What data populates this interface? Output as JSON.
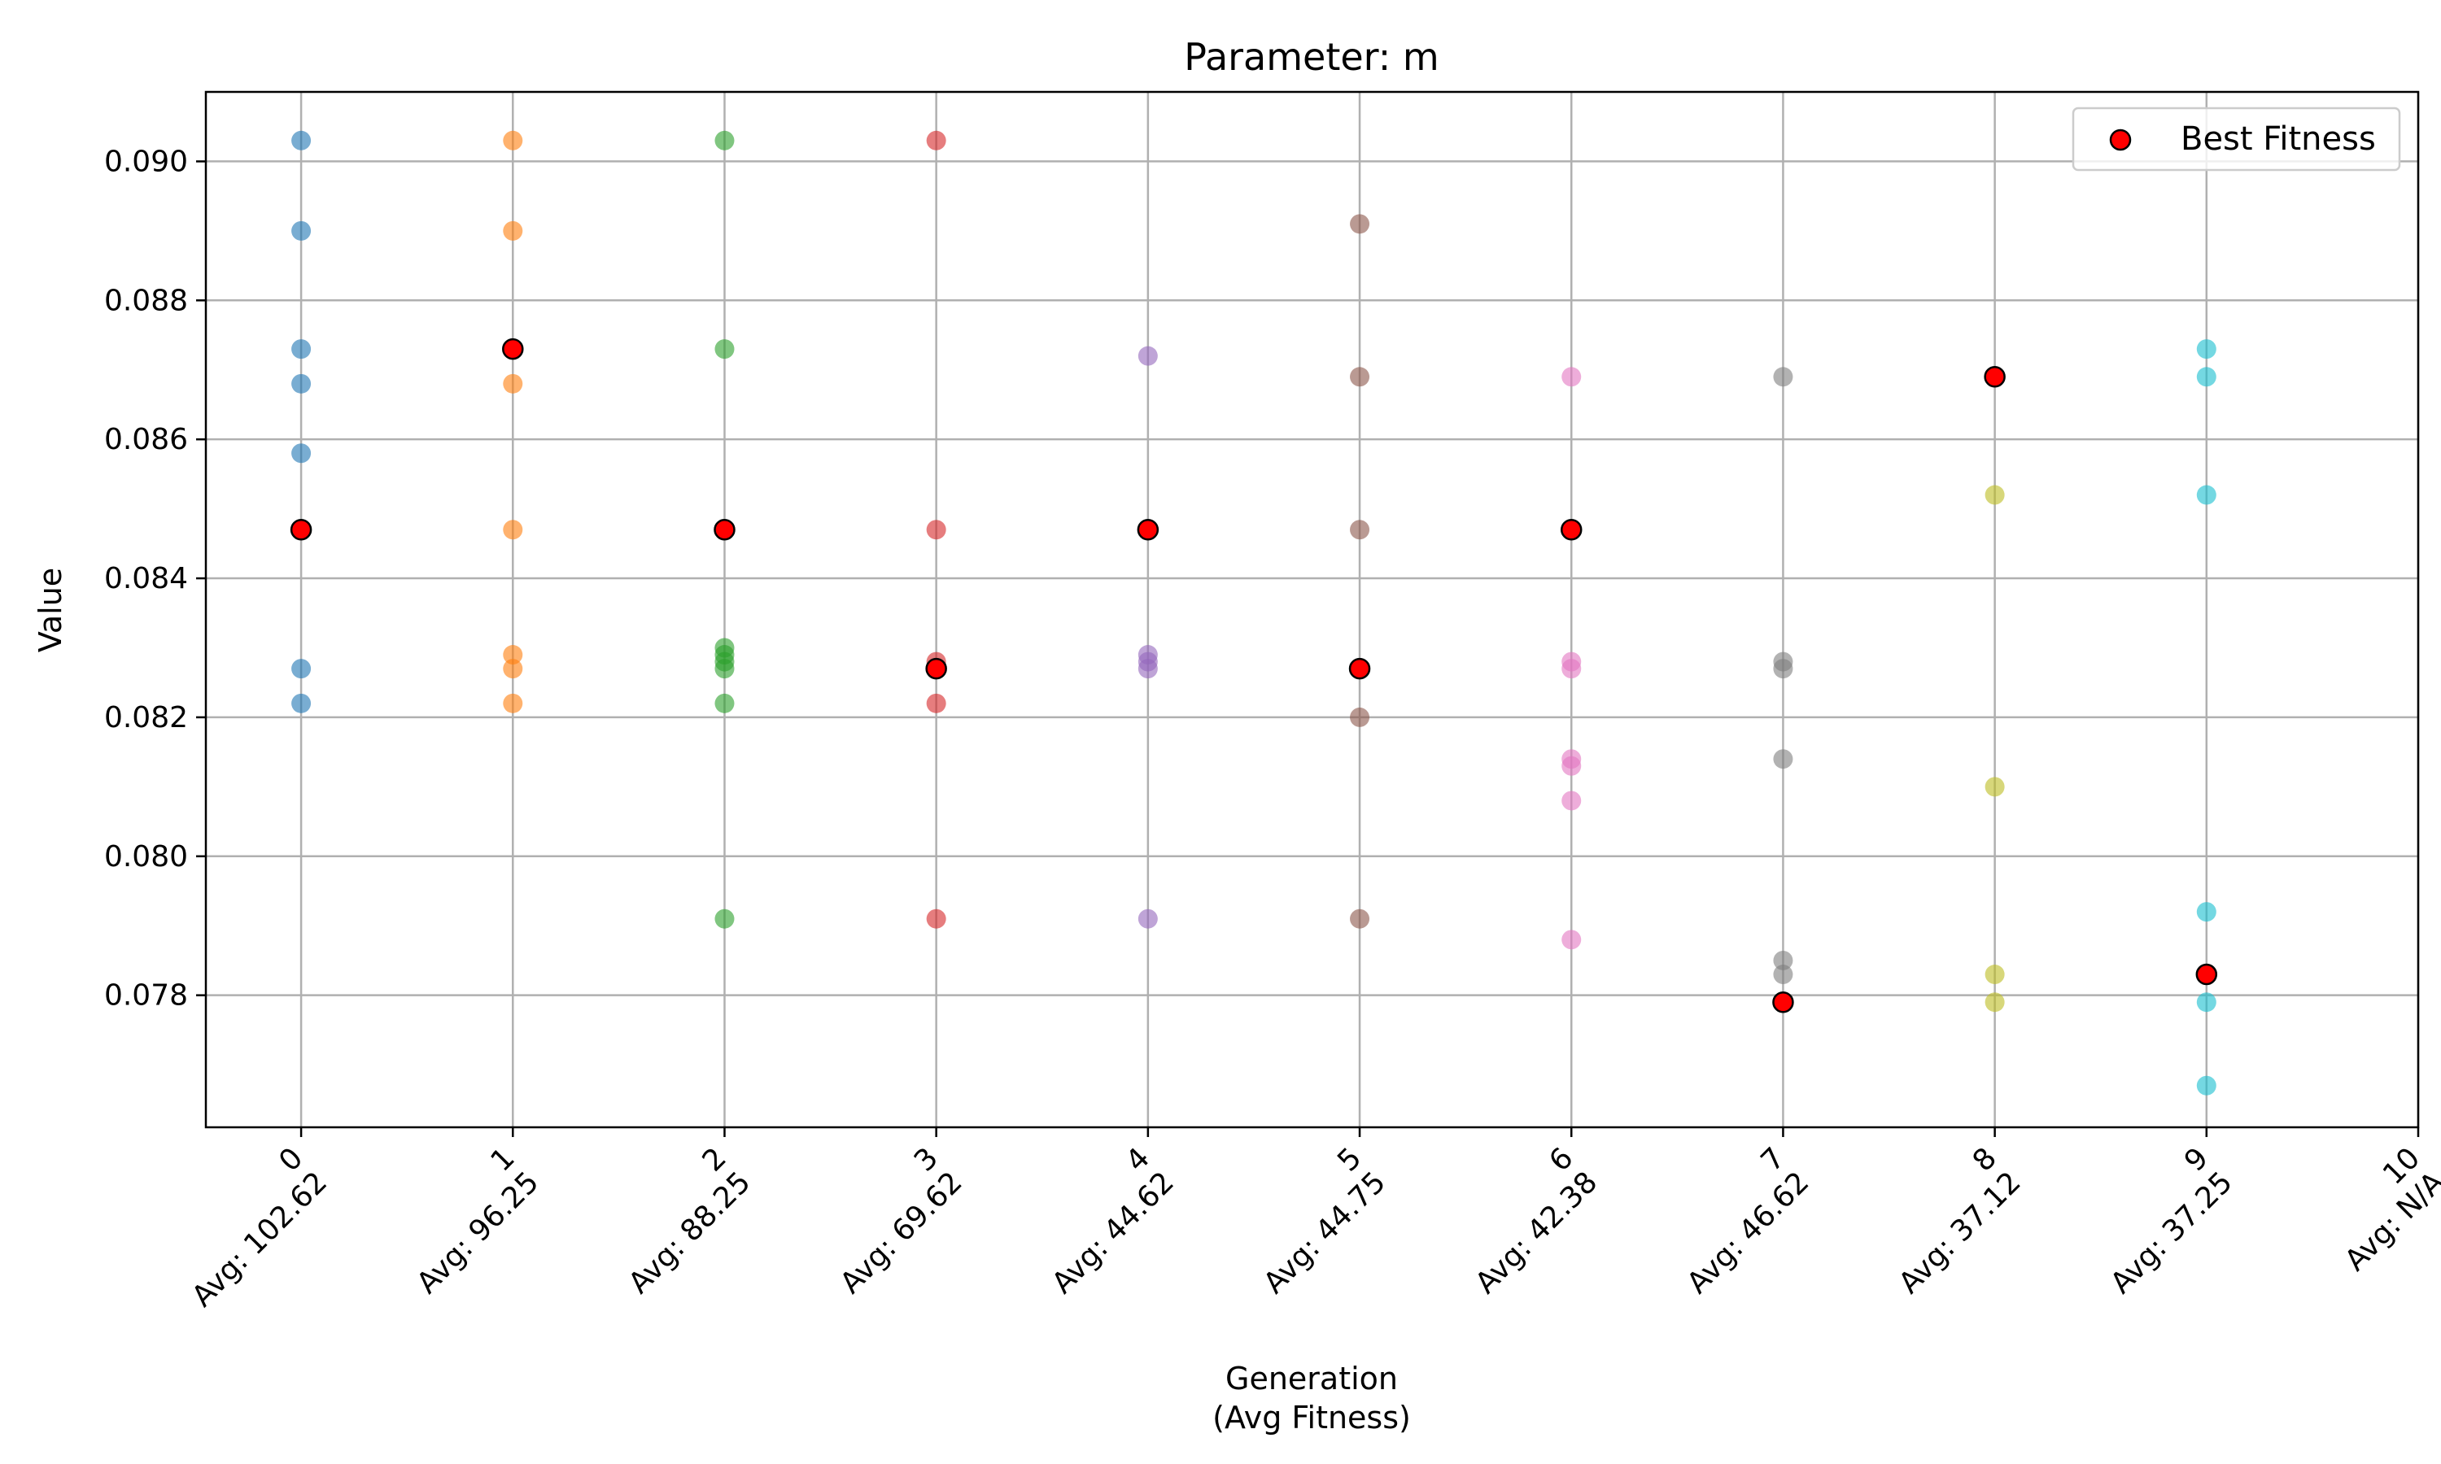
{
  "chart_data": {
    "type": "scatter",
    "title": "Parameter: m",
    "xlabel_line1": "Generation",
    "xlabel_line2": "(Avg Fitness)",
    "ylabel": "Value",
    "ylim": [
      0.0761,
      0.091
    ],
    "xlim": [
      -0.45,
      10
    ],
    "grid": true,
    "legend_placement": "top-right",
    "y_ticks": [
      "0.078",
      "0.080",
      "0.082",
      "0.084",
      "0.086",
      "0.088",
      "0.090"
    ],
    "x_tick_lines": [
      [
        "0",
        "Avg: 102.62"
      ],
      [
        "1",
        "Avg: 96.25"
      ],
      [
        "2",
        "Avg: 88.25"
      ],
      [
        "3",
        "Avg: 69.62"
      ],
      [
        "4",
        "Avg: 44.62"
      ],
      [
        "5",
        "Avg: 44.75"
      ],
      [
        "6",
        "Avg: 42.38"
      ],
      [
        "7",
        "Avg: 46.62"
      ],
      [
        "8",
        "Avg: 37.12"
      ],
      [
        "9",
        "Avg: 37.25"
      ],
      [
        "10",
        "Avg: N/A"
      ]
    ],
    "legend": {
      "label": "Best Fitness",
      "color": "#ff0000"
    },
    "series": [
      {
        "generation": 0,
        "color": "#1f77b4",
        "values": [
          0.0903,
          0.089,
          0.0873,
          0.0868,
          0.0858,
          0.0847,
          0.0827,
          0.0822
        ]
      },
      {
        "generation": 1,
        "color": "#ff7f0e",
        "values": [
          0.0903,
          0.089,
          0.0873,
          0.0868,
          0.0847,
          0.0829,
          0.0827,
          0.0822
        ]
      },
      {
        "generation": 2,
        "color": "#2ca02c",
        "values": [
          0.0903,
          0.0873,
          0.0847,
          0.083,
          0.0829,
          0.0828,
          0.0827,
          0.0822,
          0.0791
        ]
      },
      {
        "generation": 3,
        "color": "#d62728",
        "values": [
          0.0903,
          0.0847,
          0.0828,
          0.0827,
          0.0822,
          0.0791
        ]
      },
      {
        "generation": 4,
        "color": "#9467bd",
        "values": [
          0.0872,
          0.0847,
          0.0829,
          0.0828,
          0.0827,
          0.0791
        ]
      },
      {
        "generation": 5,
        "color": "#8c564b",
        "values": [
          0.0891,
          0.0869,
          0.0847,
          0.0827,
          0.082,
          0.0791
        ]
      },
      {
        "generation": 6,
        "color": "#e377c2",
        "values": [
          0.0869,
          0.0847,
          0.0828,
          0.0827,
          0.0814,
          0.0813,
          0.0808,
          0.0788
        ]
      },
      {
        "generation": 7,
        "color": "#7f7f7f",
        "values": [
          0.0869,
          0.0828,
          0.0827,
          0.0814,
          0.0785,
          0.0783,
          0.0779
        ]
      },
      {
        "generation": 8,
        "color": "#bcbd22",
        "values": [
          0.0869,
          0.0852,
          0.081,
          0.0783,
          0.0779
        ]
      },
      {
        "generation": 9,
        "color": "#17becf",
        "values": [
          0.0873,
          0.0869,
          0.0852,
          0.0792,
          0.0783,
          0.0779,
          0.0767
        ]
      }
    ],
    "best_fitness": [
      {
        "generation": 0,
        "value": 0.0847
      },
      {
        "generation": 1,
        "value": 0.0873
      },
      {
        "generation": 2,
        "value": 0.0847
      },
      {
        "generation": 3,
        "value": 0.0827
      },
      {
        "generation": 4,
        "value": 0.0847
      },
      {
        "generation": 5,
        "value": 0.0827
      },
      {
        "generation": 6,
        "value": 0.0847
      },
      {
        "generation": 7,
        "value": 0.0779
      },
      {
        "generation": 8,
        "value": 0.0869
      },
      {
        "generation": 9,
        "value": 0.0783
      }
    ]
  }
}
